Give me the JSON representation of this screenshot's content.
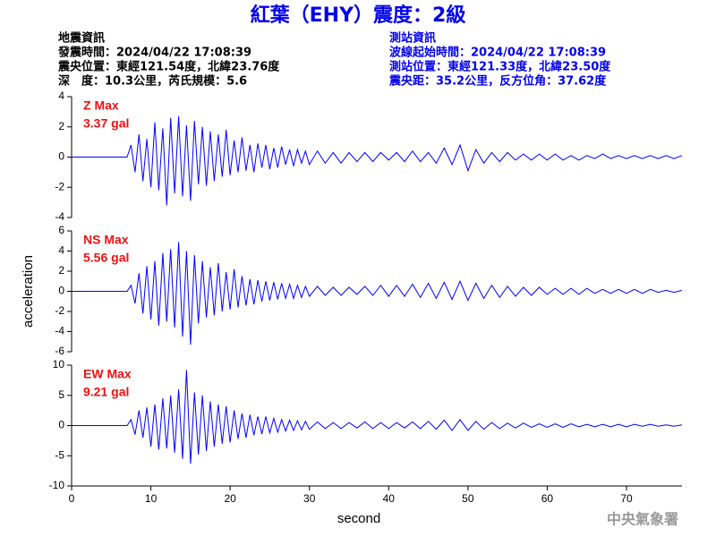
{
  "title": "紅葉（EHY）震度：2級",
  "info_left": [
    "地震資訊",
    "發震時間：2024/04/22 17:08:39",
    "震央位置：東經121.54度，北緯23.76度",
    "深　度：10.3公里，芮氏規模：5.6"
  ],
  "info_right": [
    "測站資訊",
    "波線起始時間：2024/04/22 17:08:39",
    "測站位置：東經121.33度，北緯23.50度",
    "震央距：35.2公里，反方位角：37.62度"
  ],
  "credit": "中央氣象署",
  "chart_data": [
    {
      "type": "line",
      "annotation": [
        "Z Max",
        "3.37 gal"
      ],
      "color": "#0000ff",
      "xlim": [
        0,
        77
      ],
      "ylim": [
        -4,
        4
      ],
      "yticks": [
        -4,
        -2,
        0,
        2,
        4
      ],
      "x": [
        0,
        7,
        7.5,
        8,
        8.5,
        9,
        9.5,
        10,
        10.5,
        11,
        11.5,
        12,
        12.5,
        13,
        13.5,
        14,
        14.5,
        15,
        15.5,
        16,
        16.5,
        17,
        17.5,
        18,
        18.5,
        19,
        19.5,
        20,
        20.5,
        21,
        21.5,
        22,
        22.5,
        23,
        23.5,
        24,
        24.5,
        25,
        25.5,
        26,
        26.5,
        27,
        27.5,
        28,
        28.5,
        29,
        29.5,
        30,
        31,
        32,
        33,
        34,
        35,
        36,
        37,
        38,
        39,
        40,
        41,
        42,
        43,
        44,
        45,
        46,
        47,
        48,
        49,
        50,
        51,
        52,
        53,
        54,
        55,
        56,
        57,
        58,
        59,
        60,
        61,
        62,
        63,
        64,
        65,
        66,
        67,
        68,
        69,
        70,
        71,
        72,
        73,
        74,
        75,
        76,
        77
      ],
      "values": [
        0,
        0,
        0.8,
        -1.0,
        1.5,
        -1.6,
        1.2,
        -2.0,
        2.3,
        -2.2,
        1.9,
        -3.2,
        2.6,
        -2.4,
        2.7,
        -2.6,
        2.1,
        -2.9,
        2.4,
        -1.8,
        2.0,
        -1.9,
        1.7,
        -1.6,
        1.5,
        -1.3,
        1.8,
        -1.2,
        1.1,
        -1.0,
        1.3,
        -0.9,
        0.8,
        -1.0,
        0.9,
        -0.7,
        0.8,
        -0.8,
        0.6,
        -0.7,
        0.7,
        -0.5,
        0.5,
        -0.6,
        0.5,
        -0.4,
        0.4,
        -0.5,
        0.4,
        -0.4,
        0.3,
        -0.4,
        0.3,
        -0.3,
        0.3,
        -0.3,
        0.3,
        -0.2,
        0.3,
        -0.3,
        0.4,
        -0.3,
        0.3,
        -0.4,
        0.6,
        -0.5,
        0.8,
        -0.9,
        0.5,
        -0.4,
        0.3,
        -0.3,
        0.3,
        -0.2,
        0.2,
        -0.2,
        0.2,
        -0.2,
        0.2,
        -0.2,
        0.1,
        -0.2,
        0.1,
        -0.1,
        0.2,
        -0.1,
        0.1,
        -0.1,
        0.1,
        -0.1,
        0.1,
        -0.1,
        0.1,
        -0.1,
        0.1
      ]
    },
    {
      "type": "line",
      "annotation": [
        "NS Max",
        "5.56 gal"
      ],
      "color": "#0000ff",
      "ylabel": "acceleration",
      "xlim": [
        0,
        77
      ],
      "ylim": [
        -6,
        6
      ],
      "yticks": [
        -6,
        -4,
        -2,
        0,
        2,
        4,
        6
      ],
      "x": [
        0,
        7,
        7.5,
        8,
        8.5,
        9,
        9.5,
        10,
        10.5,
        11,
        11.5,
        12,
        12.5,
        13,
        13.5,
        14,
        14.5,
        15,
        15.5,
        16,
        16.5,
        17,
        17.5,
        18,
        18.5,
        19,
        19.5,
        20,
        20.5,
        21,
        21.5,
        22,
        22.5,
        23,
        23.5,
        24,
        24.5,
        25,
        25.5,
        26,
        26.5,
        27,
        27.5,
        28,
        28.5,
        29,
        29.5,
        30,
        31,
        32,
        33,
        34,
        35,
        36,
        37,
        38,
        39,
        40,
        41,
        42,
        43,
        44,
        45,
        46,
        47,
        48,
        49,
        50,
        51,
        52,
        53,
        54,
        55,
        56,
        57,
        58,
        59,
        60,
        61,
        62,
        63,
        64,
        65,
        66,
        67,
        68,
        69,
        70,
        71,
        72,
        73,
        74,
        75,
        76,
        77
      ],
      "values": [
        0,
        0,
        0.6,
        -1.2,
        1.8,
        -2.2,
        2.5,
        -2.8,
        3.0,
        -3.4,
        3.8,
        -3.0,
        4.2,
        -3.6,
        4.9,
        -4.5,
        4.0,
        -5.3,
        3.6,
        -3.2,
        3.0,
        -2.6,
        2.4,
        -2.4,
        2.8,
        -2.0,
        1.9,
        -1.8,
        2.2,
        -1.6,
        1.5,
        -1.4,
        1.2,
        -1.3,
        1.1,
        -1.0,
        1.0,
        -0.9,
        0.9,
        -0.8,
        0.8,
        -0.7,
        0.7,
        -0.7,
        0.6,
        -0.6,
        0.5,
        -0.5,
        0.5,
        -0.4,
        0.4,
        -0.4,
        0.4,
        -0.3,
        0.5,
        -0.4,
        0.6,
        -0.5,
        0.6,
        -0.5,
        0.7,
        -0.6,
        0.8,
        -0.7,
        0.9,
        -0.8,
        1.0,
        -0.9,
        0.8,
        -0.7,
        0.6,
        -0.6,
        0.5,
        -0.5,
        0.4,
        -0.4,
        0.4,
        -0.3,
        0.3,
        -0.3,
        0.3,
        -0.3,
        0.3,
        -0.2,
        0.2,
        -0.2,
        0.2,
        -0.2,
        0.2,
        -0.2,
        0.2,
        -0.1,
        0.1,
        -0.1,
        0.1
      ]
    },
    {
      "type": "line",
      "annotation": [
        "EW Max",
        "9.21 gal"
      ],
      "color": "#0000ff",
      "xlabel": "second",
      "xlim": [
        0,
        77
      ],
      "xticks": [
        0,
        10,
        20,
        30,
        40,
        50,
        60,
        70
      ],
      "ylim": [
        -10,
        10
      ],
      "yticks": [
        -10,
        -5,
        0,
        5,
        10
      ],
      "x": [
        0,
        7,
        7.5,
        8,
        8.5,
        9,
        9.5,
        10,
        10.5,
        11,
        11.5,
        12,
        12.5,
        13,
        13.5,
        14,
        14.5,
        15,
        15.5,
        16,
        16.5,
        17,
        17.5,
        18,
        18.5,
        19,
        19.5,
        20,
        20.5,
        21,
        21.5,
        22,
        22.5,
        23,
        23.5,
        24,
        24.5,
        25,
        25.5,
        26,
        26.5,
        27,
        27.5,
        28,
        28.5,
        29,
        29.5,
        30,
        31,
        32,
        33,
        34,
        35,
        36,
        37,
        38,
        39,
        40,
        41,
        42,
        43,
        44,
        45,
        46,
        47,
        48,
        49,
        50,
        51,
        52,
        53,
        54,
        55,
        56,
        57,
        58,
        59,
        60,
        61,
        62,
        63,
        64,
        65,
        66,
        67,
        68,
        69,
        70,
        71,
        72,
        73,
        74,
        75,
        76,
        77
      ],
      "values": [
        0,
        0,
        1.0,
        -1.5,
        2.5,
        -2.0,
        3.0,
        -3.5,
        3.5,
        -4.0,
        4.5,
        -3.8,
        5.0,
        -4.5,
        6.0,
        -5.5,
        9.2,
        -6.3,
        5.5,
        -4.8,
        5.0,
        -4.2,
        4.0,
        -3.5,
        3.5,
        -3.0,
        3.2,
        -2.8,
        2.5,
        -2.2,
        2.0,
        -2.0,
        1.8,
        -1.6,
        1.5,
        -1.4,
        1.5,
        -1.2,
        1.2,
        -1.1,
        1.0,
        -0.9,
        0.9,
        -0.8,
        0.8,
        -0.7,
        0.7,
        -0.6,
        0.6,
        -0.5,
        0.5,
        -0.5,
        0.5,
        -0.4,
        0.6,
        -0.5,
        0.5,
        -0.5,
        0.5,
        -0.4,
        0.6,
        -0.5,
        0.7,
        -0.6,
        0.9,
        -0.8,
        1.0,
        -0.8,
        0.7,
        -0.6,
        0.5,
        -0.5,
        0.4,
        -0.4,
        0.4,
        -0.3,
        0.3,
        -0.3,
        0.3,
        -0.3,
        0.3,
        -0.2,
        0.2,
        -0.2,
        0.2,
        -0.2,
        0.2,
        -0.2,
        0.2,
        -0.1,
        0.2,
        -0.1,
        0.1,
        -0.1,
        0.1
      ]
    }
  ]
}
